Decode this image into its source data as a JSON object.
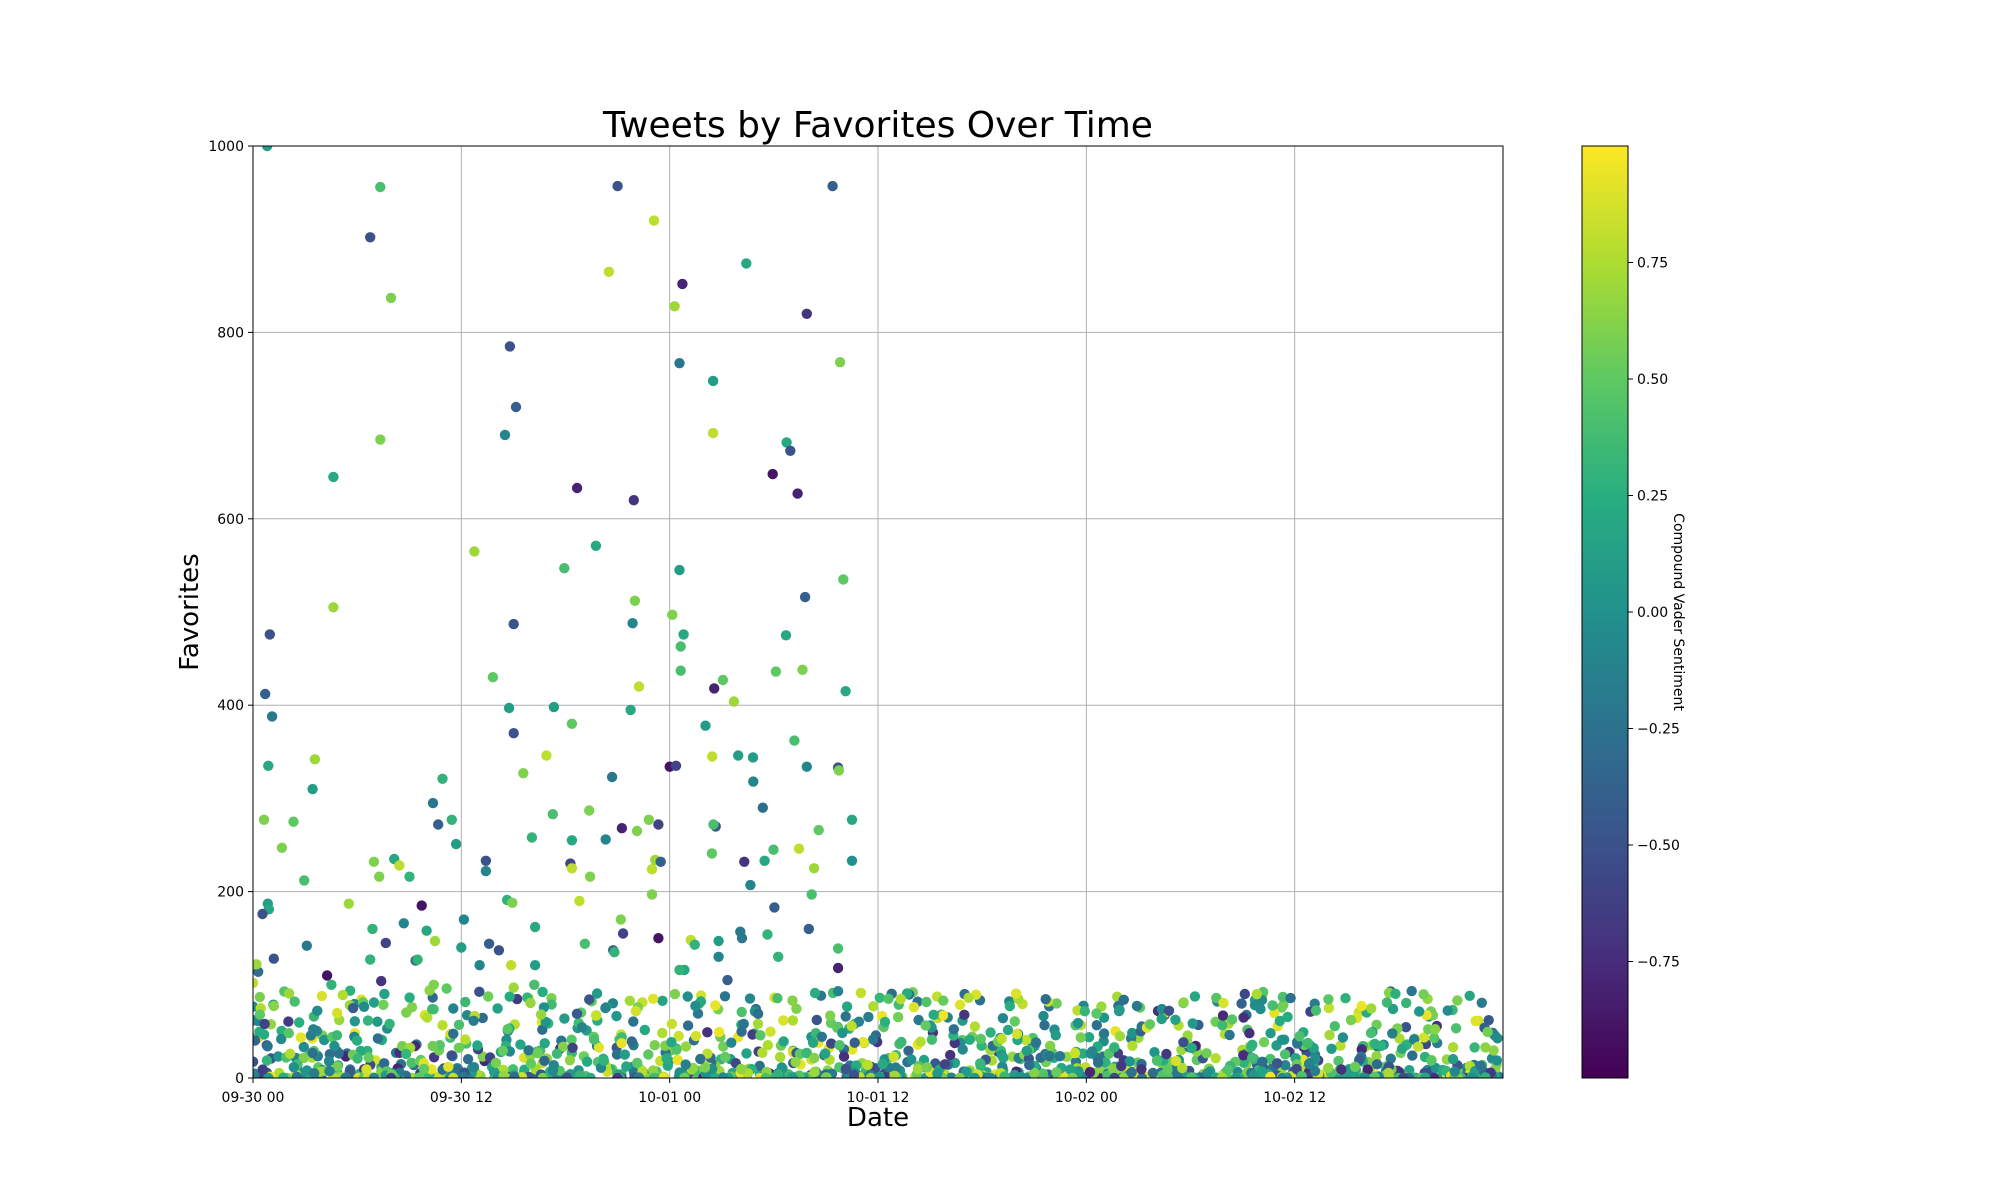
{
  "chart_data": {
    "type": "scatter",
    "title": "Tweets by Favorites Over Time",
    "xlabel": "Date",
    "ylabel": "Favorites",
    "xlim": [
      "2017-09-30 00:00",
      "2017-10-03 00:00"
    ],
    "ylim": [
      0,
      1000
    ],
    "grid": true,
    "x_tick_labels": [
      "09-30 00",
      "09-30 12",
      "10-01 00",
      "10-01 12",
      "10-02 00",
      "10-02 12"
    ],
    "y_tick_labels": [
      "0",
      "200",
      "400",
      "600",
      "800",
      "1000"
    ],
    "colorbar": {
      "label": "Compound Vader Sentiment",
      "colormap": "viridis",
      "range": [
        -1,
        1
      ],
      "tick_labels": [
        "−0.75",
        "−0.50",
        "−0.25",
        "0.00",
        "0.25",
        "0.50",
        "0.75"
      ]
    },
    "points": [
      [
        "2017-09-30 00:00",
        102,
        0.8
      ],
      [
        "2017-09-30 00:24",
        68,
        0.5
      ],
      [
        "2017-09-30 00:49",
        1000,
        0.1
      ],
      [
        "2017-09-30 00:58",
        476,
        -0.5
      ],
      [
        "2017-09-30 00:42",
        412,
        -0.4
      ],
      [
        "2017-09-30 01:06",
        388,
        -0.2
      ],
      [
        "2017-09-30 00:53",
        335,
        0.2
      ],
      [
        "2017-09-30 00:38",
        277,
        0.6
      ],
      [
        "2017-09-30 00:51",
        187,
        0.1
      ],
      [
        "2017-09-30 00:55",
        181,
        0.2
      ],
      [
        "2017-09-30 00:33",
        176,
        -0.5
      ],
      [
        "2017-09-30 01:12",
        128,
        -0.5
      ],
      [
        "2017-09-30 00:18",
        114,
        -0.3
      ],
      [
        "2017-09-30 00:40",
        58,
        -0.6
      ],
      [
        "2017-09-30 00:12",
        122,
        0.7
      ],
      [
        "2017-09-30 01:40",
        247,
        0.6
      ],
      [
        "2017-09-30 02:20",
        275,
        0.5
      ],
      [
        "2017-09-30 02:57",
        212,
        0.4
      ],
      [
        "2017-09-30 03:26",
        310,
        0.1
      ],
      [
        "2017-09-30 03:34",
        342,
        0.7
      ],
      [
        "2017-09-30 04:16",
        110,
        -0.9
      ],
      [
        "2017-09-30 03:06",
        142,
        -0.2
      ],
      [
        "2017-09-30 02:24",
        82,
        0.4
      ],
      [
        "2017-09-30 04:38",
        645,
        0.2
      ],
      [
        "2017-09-30 04:38",
        505,
        0.7
      ],
      [
        "2017-09-30 04:31",
        100,
        0.3
      ],
      [
        "2017-09-30 05:31",
        187,
        0.7
      ],
      [
        "2017-09-30 05:35",
        78,
        0.7
      ],
      [
        "2017-09-30 05:46",
        75,
        -0.4
      ],
      [
        "2017-09-30 06:45",
        127,
        0.3
      ],
      [
        "2017-09-30 06:45",
        902,
        -0.5
      ],
      [
        "2017-09-30 06:58",
        232,
        0.6
      ],
      [
        "2017-09-30 07:16",
        216,
        0.6
      ],
      [
        "2017-09-30 07:20",
        956,
        0.4
      ],
      [
        "2017-09-30 07:20",
        685,
        0.6
      ],
      [
        "2017-09-30 06:53",
        160,
        0.3
      ],
      [
        "2017-09-30 07:23",
        104,
        -0.7
      ],
      [
        "2017-09-30 07:39",
        145,
        -0.6
      ],
      [
        "2017-09-30 07:52",
        58,
        0.3
      ],
      [
        "2017-09-30 07:57",
        837,
        0.6
      ],
      [
        "2017-09-30 08:08",
        235,
        0.2
      ],
      [
        "2017-09-30 08:26",
        228,
        0.8
      ],
      [
        "2017-09-30 08:41",
        166,
        -0.1
      ],
      [
        "2017-09-30 09:01",
        216,
        0.3
      ],
      [
        "2017-09-30 09:22",
        126,
        -0.3
      ],
      [
        "2017-09-30 09:29",
        127,
        0.3
      ],
      [
        "2017-09-30 09:43",
        185,
        -0.9
      ],
      [
        "2017-09-30 10:00",
        158,
        0.2
      ],
      [
        "2017-09-30 10:22",
        295,
        -0.2
      ],
      [
        "2017-09-30 10:29",
        147,
        0.7
      ],
      [
        "2017-09-30 10:25",
        100,
        0.6
      ],
      [
        "2017-09-30 10:40",
        272,
        -0.4
      ],
      [
        "2017-09-30 10:55",
        321,
        0.3
      ],
      [
        "2017-09-30 11:09",
        96,
        0.5
      ],
      [
        "2017-09-30 11:27",
        277,
        0.3
      ],
      [
        "2017-09-30 11:42",
        251,
        0.1
      ],
      [
        "2017-09-30 12:00",
        140,
        0.1
      ],
      [
        "2017-09-30 12:09",
        170,
        -0.1
      ],
      [
        "2017-09-30 12:45",
        565,
        0.7
      ],
      [
        "2017-09-30 13:03",
        121,
        -0.1
      ],
      [
        "2017-09-30 13:25",
        233,
        -0.5
      ],
      [
        "2017-09-30 13:25",
        222,
        -0.1
      ],
      [
        "2017-09-30 13:36",
        144,
        -0.4
      ],
      [
        "2017-09-30 13:49",
        430,
        0.5
      ],
      [
        "2017-09-30 14:10",
        137,
        -0.5
      ],
      [
        "2017-09-30 14:31",
        690,
        -0.1
      ],
      [
        "2017-09-30 14:38",
        191,
        0.3
      ],
      [
        "2017-09-30 14:45",
        397,
        0.1
      ],
      [
        "2017-09-30 14:48",
        785,
        -0.5
      ],
      [
        "2017-09-30 15:01",
        370,
        -0.5
      ],
      [
        "2017-09-30 15:01",
        487,
        -0.5
      ],
      [
        "2017-09-30 14:56",
        188,
        0.6
      ],
      [
        "2017-09-30 15:09",
        720,
        -0.4
      ],
      [
        "2017-09-30 15:34",
        327,
        0.6
      ],
      [
        "2017-09-30 14:52",
        121,
        0.8
      ],
      [
        "2017-09-30 15:01",
        97,
        0.7
      ],
      [
        "2017-09-30 16:04",
        258,
        0.3
      ],
      [
        "2017-09-30 16:15",
        162,
        0.2
      ],
      [
        "2017-09-30 16:15",
        121,
        0.1
      ],
      [
        "2017-09-30 16:12",
        100,
        0.4
      ],
      [
        "2017-09-30 16:54",
        346,
        0.8
      ],
      [
        "2017-09-30 17:16",
        283,
        0.4
      ],
      [
        "2017-09-30 17:20",
        398,
        0.1
      ],
      [
        "2017-09-30 17:56",
        547,
        0.4
      ],
      [
        "2017-09-30 18:22",
        380,
        0.5
      ],
      [
        "2017-09-30 18:17",
        230,
        -0.6
      ],
      [
        "2017-09-30 18:22",
        255,
        0.2
      ],
      [
        "2017-09-30 18:22",
        225,
        0.8
      ],
      [
        "2017-09-30 18:40",
        633,
        -0.8
      ],
      [
        "2017-09-30 18:48",
        190,
        0.8
      ],
      [
        "2017-09-30 19:07",
        144,
        0.4
      ],
      [
        "2017-09-30 19:22",
        287,
        0.6
      ],
      [
        "2017-09-30 19:25",
        216,
        0.6
      ],
      [
        "2017-09-30 19:45",
        571,
        0.2
      ],
      [
        "2017-09-30 20:30",
        865,
        0.8
      ],
      [
        "2017-09-30 20:19",
        256,
        -0.1
      ],
      [
        "2017-09-30 20:41",
        323,
        -0.2
      ],
      [
        "2017-09-30 20:45",
        137,
        -0.4
      ],
      [
        "2017-09-30 20:49",
        135,
        0.3
      ],
      [
        "2017-09-30 21:00",
        957,
        -0.5
      ],
      [
        "2017-09-30 21:15",
        268,
        -0.8
      ],
      [
        "2017-09-30 21:19",
        155,
        -0.6
      ],
      [
        "2017-09-30 21:11",
        170,
        0.6
      ],
      [
        "2017-09-30 21:45",
        395,
        0.2
      ],
      [
        "2017-09-30 21:52",
        488,
        -0.1
      ],
      [
        "2017-09-30 21:56",
        620,
        -0.7
      ],
      [
        "2017-09-30 22:00",
        512,
        0.6
      ],
      [
        "2017-09-30 22:07",
        265,
        0.6
      ],
      [
        "2017-09-30 22:14",
        420,
        0.8
      ],
      [
        "2017-09-30 22:48",
        277,
        0.6
      ],
      [
        "2017-09-30 22:59",
        197,
        0.6
      ],
      [
        "2017-09-30 22:59",
        224,
        0.8
      ],
      [
        "2017-09-30 23:21",
        272,
        -0.6
      ],
      [
        "2017-09-30 23:21",
        150,
        -0.9
      ],
      [
        "2017-09-30 23:10",
        234,
        0.7
      ],
      [
        "2017-09-30 23:06",
        920,
        0.8
      ],
      [
        "2017-09-30 23:29",
        232,
        -0.4
      ],
      [
        "2017-10-01 00:00",
        334,
        -0.9
      ],
      [
        "2017-10-01 00:09",
        497,
        0.6
      ],
      [
        "2017-10-01 00:22",
        335,
        -0.6
      ],
      [
        "2017-10-01 00:17",
        828,
        0.7
      ],
      [
        "2017-10-01 00:44",
        852,
        -0.8
      ],
      [
        "2017-10-01 00:34",
        767,
        -0.2
      ],
      [
        "2017-10-01 00:34",
        545,
        0.1
      ],
      [
        "2017-10-01 00:38",
        463,
        0.4
      ],
      [
        "2017-10-01 00:48",
        476,
        0.2
      ],
      [
        "2017-10-01 00:38",
        437,
        0.4
      ],
      [
        "2017-10-01 00:51",
        116,
        0.2
      ],
      [
        "2017-10-01 00:34",
        116,
        0.3
      ],
      [
        "2017-10-01 00:18",
        90,
        0.6
      ],
      [
        "2017-10-01 01:13",
        148,
        0.8
      ],
      [
        "2017-10-01 01:27",
        143,
        0.3
      ],
      [
        "2017-10-01 02:04",
        378,
        0.1
      ],
      [
        "2017-10-01 02:30",
        748,
        0.1
      ],
      [
        "2017-10-01 02:30",
        692,
        0.8
      ],
      [
        "2017-10-01 02:27",
        345,
        0.8
      ],
      [
        "2017-10-01 02:26",
        241,
        0.5
      ],
      [
        "2017-10-01 02:34",
        418,
        -0.8
      ],
      [
        "2017-10-01 02:39",
        270,
        -0.5
      ],
      [
        "2017-10-01 02:31",
        272,
        0.4
      ],
      [
        "2017-10-01 02:49",
        147,
        0.1
      ],
      [
        "2017-10-01 03:04",
        427,
        0.5
      ],
      [
        "2017-10-01 02:49",
        130,
        -0.1
      ],
      [
        "2017-10-01 03:20",
        105,
        -0.4
      ],
      [
        "2017-10-01 03:42",
        404,
        0.7
      ],
      [
        "2017-10-01 03:57",
        346,
        0.1
      ],
      [
        "2017-10-01 04:25",
        874,
        0.2
      ],
      [
        "2017-10-01 04:18",
        232,
        -0.7
      ],
      [
        "2017-10-01 04:10",
        150,
        -0.2
      ],
      [
        "2017-10-01 04:04",
        157,
        -0.2
      ],
      [
        "2017-10-01 04:39",
        207,
        -0.1
      ],
      [
        "2017-10-01 04:48",
        344,
        0.1
      ],
      [
        "2017-10-01 04:49",
        318,
        -0.1
      ],
      [
        "2017-10-01 05:22",
        290,
        -0.3
      ],
      [
        "2017-10-01 05:28",
        233,
        0.2
      ],
      [
        "2017-10-01 05:38",
        154,
        0.3
      ],
      [
        "2017-10-01 05:56",
        648,
        -0.9
      ],
      [
        "2017-10-01 06:07",
        436,
        0.5
      ],
      [
        "2017-10-01 05:59",
        245,
        0.4
      ],
      [
        "2017-10-01 06:02",
        183,
        -0.4
      ],
      [
        "2017-10-01 06:15",
        130,
        0.3
      ],
      [
        "2017-10-01 06:44",
        682,
        0.2
      ],
      [
        "2017-10-01 06:42",
        475,
        0.2
      ],
      [
        "2017-10-01 06:57",
        673,
        -0.5
      ],
      [
        "2017-10-01 07:11",
        362,
        0.4
      ],
      [
        "2017-10-01 07:22",
        627,
        -0.8
      ],
      [
        "2017-10-01 07:27",
        246,
        0.8
      ],
      [
        "2017-10-01 07:39",
        438,
        0.6
      ],
      [
        "2017-10-01 07:48",
        516,
        -0.4
      ],
      [
        "2017-10-01 07:54",
        820,
        -0.7
      ],
      [
        "2017-10-01 07:54",
        334,
        -0.1
      ],
      [
        "2017-10-01 08:01",
        160,
        -0.4
      ],
      [
        "2017-10-01 08:19",
        225,
        0.7
      ],
      [
        "2017-10-01 08:11",
        197,
        0.4
      ],
      [
        "2017-10-01 08:35",
        266,
        0.5
      ],
      [
        "2017-10-01 09:23",
        957,
        -0.4
      ],
      [
        "2017-10-01 09:42",
        333,
        -0.5
      ],
      [
        "2017-10-01 09:45",
        330,
        0.6
      ],
      [
        "2017-10-01 09:49",
        768,
        0.6
      ],
      [
        "2017-10-01 10:00",
        535,
        0.5
      ],
      [
        "2017-10-01 10:08",
        415,
        0.2
      ],
      [
        "2017-10-01 10:30",
        233,
        0.0
      ],
      [
        "2017-10-01 10:30",
        277,
        0.2
      ],
      [
        "2017-10-01 09:42",
        118,
        -0.8
      ],
      [
        "2017-10-01 09:42",
        139,
        0.4
      ]
    ]
  }
}
